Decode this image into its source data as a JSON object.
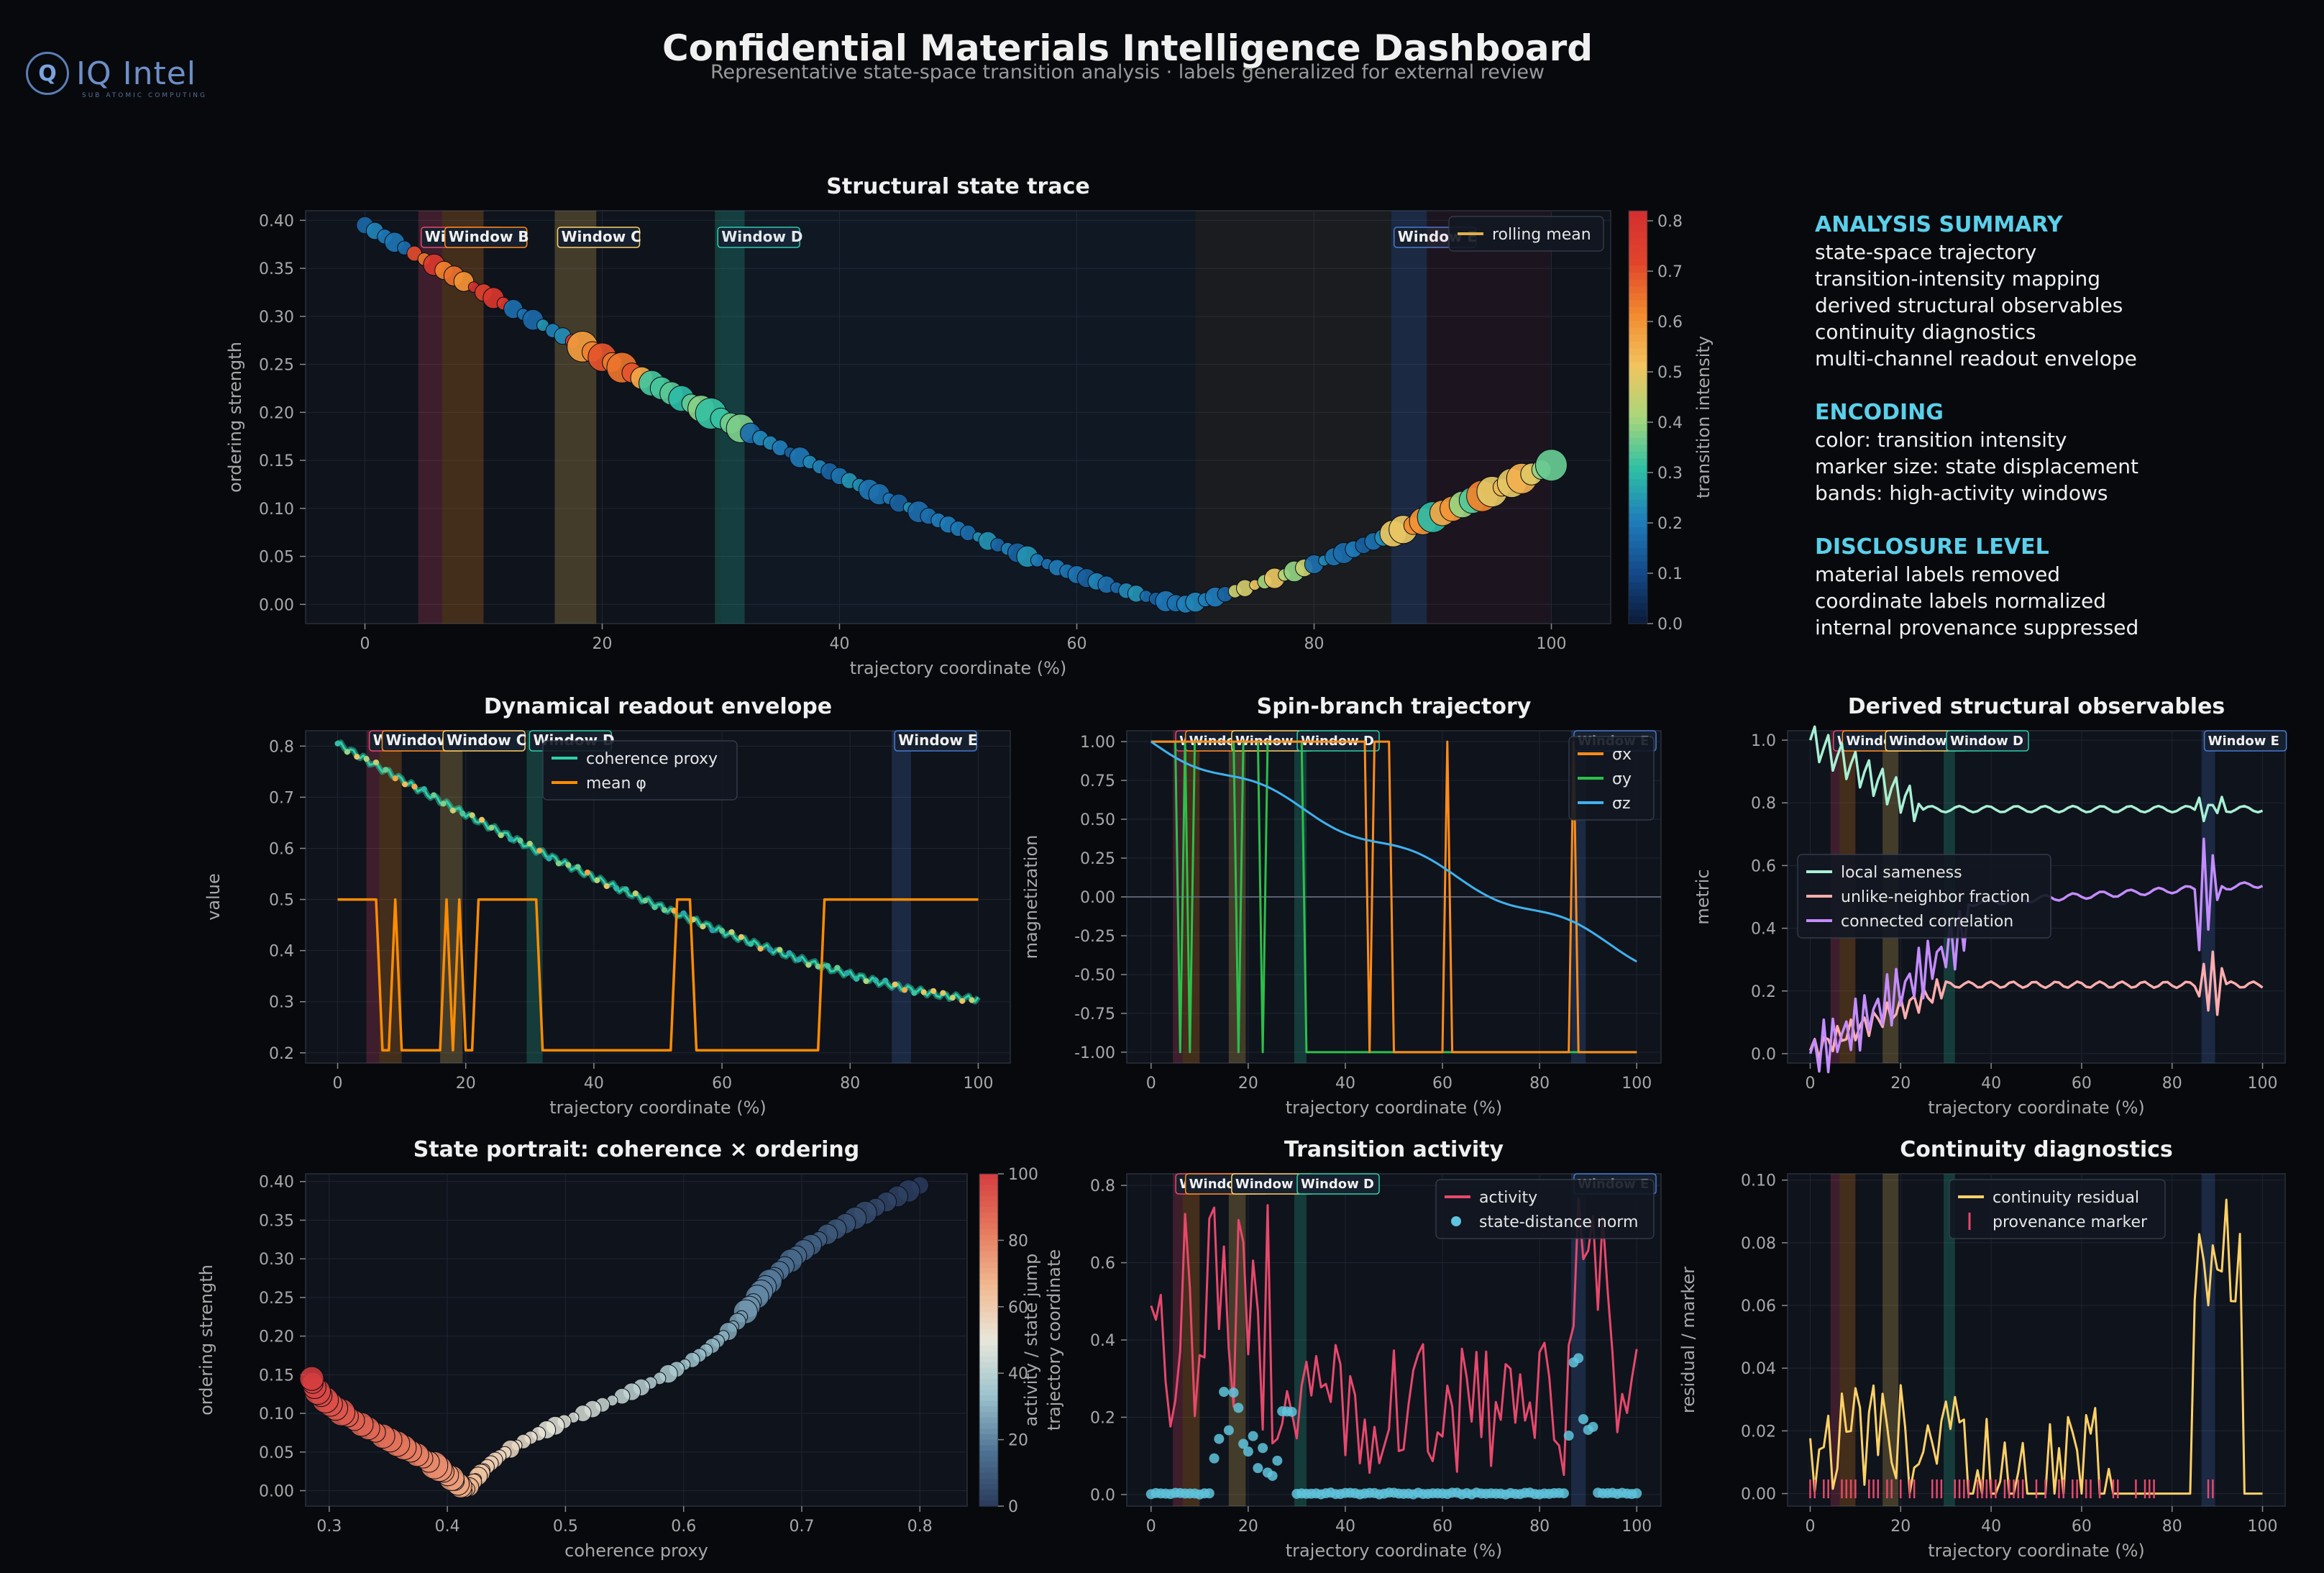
{
  "header": {
    "title": "Confidential Materials Intelligence Dashboard",
    "subtitle": "Representative state-space transition analysis · labels generalized for external review",
    "logo_text": "IQ Intel",
    "logo_tagline": "SUB ATOMIC COMPUTING"
  },
  "colors": {
    "background": "#07090d",
    "panel": "#0f131c",
    "text": "#e6e6e6",
    "muted": "#a8a8a8",
    "accent": "#5ad0ea",
    "coherence": "#2ed0a8",
    "mean": "#ff8c00",
    "sigma_x": "#ff8c1a",
    "sigma_y": "#2dbf4a",
    "sigma_z": "#3fb2ee",
    "activity": "#e8486c",
    "distance": "#5fc4dc",
    "residual": "#ffd166",
    "sameness": "#a8f0d4",
    "unlike": "#ffadad",
    "correlation": "#c48cff"
  },
  "windows": [
    {
      "label": "Window A",
      "x0": 4.5,
      "x1": 6.5,
      "color": "#e8486c"
    },
    {
      "label": "Window B",
      "x0": 6.5,
      "x1": 10.0,
      "color": "#ff8c1a"
    },
    {
      "label": "Window C",
      "x0": 16.0,
      "x1": 19.5,
      "color": "#ffd166"
    },
    {
      "label": "Window D",
      "x0": 29.5,
      "x1": 32.0,
      "color": "#2ed0a8"
    },
    {
      "label": "Window E",
      "x0": 86.5,
      "x1": 89.5,
      "color": "#4a7bd0"
    }
  ],
  "sidebar": {
    "sections": [
      {
        "heading": "ANALYSIS SUMMARY",
        "items": [
          "state-space trajectory",
          "transition-intensity mapping",
          "derived structural observables",
          "continuity diagnostics",
          "multi-channel readout envelope"
        ]
      },
      {
        "heading": "ENCODING",
        "items": [
          "color: transition intensity",
          "marker size: state displacement",
          "bands: high-activity windows"
        ]
      },
      {
        "heading": "DISCLOSURE LEVEL",
        "items": [
          "material labels removed",
          "coordinate labels normalized",
          "internal provenance suppressed"
        ]
      }
    ]
  },
  "chart_data": [
    {
      "id": "trace",
      "type": "scatter",
      "title": "Structural state trace",
      "xlabel": "trajectory coordinate (%)",
      "ylabel": "ordering strength",
      "colorbar_label": "transition intensity",
      "xlim": [
        -5,
        105
      ],
      "ylim": [
        -0.02,
        0.41
      ],
      "xticks": [
        0,
        20,
        40,
        60,
        80,
        100
      ],
      "yticks": [
        0.0,
        0.05,
        0.1,
        0.15,
        0.2,
        0.25,
        0.3,
        0.35,
        0.4
      ],
      "colorbar_ticks": [
        0.0,
        0.1,
        0.2,
        0.3,
        0.4,
        0.5,
        0.6,
        0.7,
        0.8
      ],
      "legend": [
        "rolling mean"
      ],
      "legend_position": "top-right",
      "grid": true
    },
    {
      "id": "envelope",
      "type": "line",
      "title": "Dynamical readout envelope",
      "xlabel": "trajectory coordinate (%)",
      "ylabel": "value",
      "xlim": [
        -5,
        105
      ],
      "ylim": [
        0.18,
        0.83
      ],
      "xticks": [
        0,
        20,
        40,
        60,
        80,
        100
      ],
      "yticks": [
        0.2,
        0.3,
        0.4,
        0.5,
        0.6,
        0.7,
        0.8
      ],
      "legend_position": "top-center",
      "series": [
        {
          "name": "coherence proxy"
        },
        {
          "name": "mean φ",
          "points": [
            [
              0,
              0.5
            ],
            [
              6,
              0.5
            ],
            [
              7,
              0.205
            ],
            [
              8,
              0.205
            ],
            [
              9,
              0.5
            ],
            [
              10,
              0.205
            ],
            [
              16,
              0.205
            ],
            [
              17,
              0.5
            ],
            [
              18,
              0.205
            ],
            [
              19,
              0.5
            ],
            [
              20,
              0.205
            ],
            [
              21,
              0.205
            ],
            [
              22,
              0.5
            ],
            [
              31,
              0.5
            ],
            [
              32,
              0.205
            ],
            [
              52,
              0.205
            ],
            [
              53,
              0.5
            ],
            [
              55,
              0.5
            ],
            [
              56,
              0.205
            ],
            [
              75,
              0.205
            ],
            [
              76,
              0.5
            ],
            [
              100,
              0.5
            ]
          ]
        }
      ]
    },
    {
      "id": "spin",
      "type": "line",
      "title": "Spin-branch trajectory",
      "xlabel": "trajectory coordinate (%)",
      "ylabel": "magnetization",
      "xlim": [
        -5,
        105
      ],
      "ylim": [
        -1.07,
        1.07
      ],
      "xticks": [
        0,
        20,
        40,
        60,
        80,
        100
      ],
      "yticks": [
        -1.0,
        -0.75,
        -0.5,
        -0.25,
        0.0,
        0.25,
        0.5,
        0.75,
        1.0
      ],
      "legend_position": "top-right",
      "series": [
        {
          "name": "σx",
          "points": [
            [
              0,
              1
            ],
            [
              44,
              1
            ],
            [
              45,
              -1
            ],
            [
              46,
              1
            ],
            [
              49,
              1
            ],
            [
              50,
              -1
            ],
            [
              60,
              -1
            ],
            [
              61,
              1
            ],
            [
              62,
              -1
            ],
            [
              86,
              -1
            ],
            [
              87,
              1
            ],
            [
              88,
              -1
            ],
            [
              100,
              -1
            ]
          ]
        },
        {
          "name": "σy",
          "points": [
            [
              0,
              1
            ],
            [
              5,
              1
            ],
            [
              6,
              -1
            ],
            [
              7,
              1
            ],
            [
              8,
              -1
            ],
            [
              9,
              1
            ],
            [
              17,
              1
            ],
            [
              18,
              -1
            ],
            [
              19,
              1
            ],
            [
              22,
              1
            ],
            [
              23,
              -1
            ],
            [
              24,
              1
            ],
            [
              31,
              1
            ],
            [
              32,
              -1
            ],
            [
              100,
              -1
            ]
          ]
        },
        {
          "name": "σz"
        }
      ]
    },
    {
      "id": "observables",
      "type": "line",
      "title": "Derived structural observables",
      "xlabel": "trajectory coordinate (%)",
      "ylabel": "metric",
      "xlim": [
        -5,
        105
      ],
      "ylim": [
        -0.03,
        1.03
      ],
      "xticks": [
        0,
        20,
        40,
        60,
        80,
        100
      ],
      "yticks": [
        0.0,
        0.2,
        0.4,
        0.6,
        0.8,
        1.0
      ],
      "legend_position": "center-left",
      "series": [
        {
          "name": "local sameness"
        },
        {
          "name": "unlike-neighbor fraction"
        },
        {
          "name": "connected correlation"
        }
      ]
    },
    {
      "id": "portrait",
      "type": "scatter",
      "title": "State portrait: coherence × ordering",
      "xlabel": "coherence proxy",
      "ylabel": "ordering strength",
      "colorbar_label": "trajectory coordinate",
      "xlim": [
        0.28,
        0.84
      ],
      "ylim": [
        -0.02,
        0.41
      ],
      "xticks": [
        0.3,
        0.4,
        0.5,
        0.6,
        0.7,
        0.8
      ],
      "yticks": [
        0.0,
        0.05,
        0.1,
        0.15,
        0.2,
        0.25,
        0.3,
        0.35,
        0.4
      ],
      "colorbar_ticks": [
        0,
        20,
        40,
        60,
        80,
        100
      ],
      "grid": true
    },
    {
      "id": "activity",
      "type": "line",
      "title": "Transition activity",
      "xlabel": "trajectory coordinate (%)",
      "ylabel": "activity / state jump",
      "xlim": [
        -5,
        105
      ],
      "ylim": [
        -0.03,
        0.83
      ],
      "xticks": [
        0,
        20,
        40,
        60,
        80,
        100
      ],
      "yticks": [
        0.0,
        0.2,
        0.4,
        0.6,
        0.8
      ],
      "legend_position": "top-right",
      "series": [
        {
          "name": "activity"
        },
        {
          "name": "state-distance norm"
        }
      ]
    },
    {
      "id": "continuity",
      "type": "line",
      "title": "Continuity diagnostics",
      "xlabel": "trajectory coordinate (%)",
      "ylabel": "residual / marker",
      "xlim": [
        -5,
        105
      ],
      "ylim": [
        -0.004,
        0.102
      ],
      "xticks": [
        0,
        20,
        40,
        60,
        80,
        100
      ],
      "yticks": [
        0.0,
        0.02,
        0.04,
        0.06,
        0.08,
        0.1
      ],
      "legend_position": "top-center",
      "series": [
        {
          "name": "continuity residual"
        },
        {
          "name": "provenance marker"
        }
      ]
    }
  ]
}
